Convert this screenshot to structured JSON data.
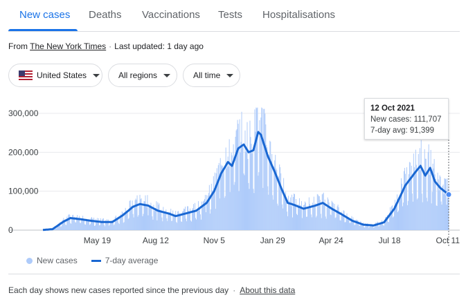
{
  "tabs": [
    {
      "label": "New cases",
      "active": true
    },
    {
      "label": "Deaths",
      "active": false
    },
    {
      "label": "Vaccinations",
      "active": false
    },
    {
      "label": "Tests",
      "active": false
    },
    {
      "label": "Hospitalisations",
      "active": false
    }
  ],
  "source": {
    "prefix": "From",
    "name": "The New York Times",
    "separator": "·",
    "updated": "Last updated: 1 day ago"
  },
  "filters": {
    "country": "United States",
    "region": "All regions",
    "time": "All time"
  },
  "tooltip": {
    "date": "12 Oct 2021",
    "cases": "New cases: 111,707",
    "avg": "7-day avg: 91,399"
  },
  "legend": {
    "bars": "New cases",
    "line": "7-day average"
  },
  "footer": {
    "text": "Each day shows new cases reported since the previous day",
    "separator": "·",
    "link": "About this data"
  },
  "colors": {
    "accent": "#1a73e8",
    "bar": "#aecbfa",
    "line": "#1967d2"
  },
  "chart_data": {
    "type": "bar",
    "series_names": [
      "New cases",
      "7-day average"
    ],
    "ylim": [
      0,
      300000
    ],
    "yticks": [
      0,
      100000,
      200000,
      300000
    ],
    "ytick_labels": [
      "0",
      "100,000",
      "200,000",
      "300,000"
    ],
    "xticks": [
      "May 19",
      "Aug 12",
      "Nov 5",
      "Jan 29",
      "Apr 24",
      "Jul 18",
      "Oct 11"
    ],
    "avg_points": [
      [
        "2020-03-01",
        500
      ],
      [
        "2020-03-15",
        2500
      ],
      [
        "2020-03-31",
        22000
      ],
      [
        "2020-04-10",
        31000
      ],
      [
        "2020-04-25",
        28000
      ],
      [
        "2020-05-10",
        24000
      ],
      [
        "2020-05-25",
        21000
      ],
      [
        "2020-06-10",
        21000
      ],
      [
        "2020-06-25",
        38000
      ],
      [
        "2020-07-10",
        60000
      ],
      [
        "2020-07-20",
        67000
      ],
      [
        "2020-08-01",
        63000
      ],
      [
        "2020-08-15",
        50000
      ],
      [
        "2020-09-01",
        42000
      ],
      [
        "2020-09-10",
        36000
      ],
      [
        "2020-09-25",
        43000
      ],
      [
        "2020-10-10",
        50000
      ],
      [
        "2020-10-25",
        70000
      ],
      [
        "2020-11-05",
        100000
      ],
      [
        "2020-11-15",
        145000
      ],
      [
        "2020-11-25",
        175000
      ],
      [
        "2020-12-01",
        165000
      ],
      [
        "2020-12-10",
        210000
      ],
      [
        "2020-12-18",
        220000
      ],
      [
        "2020-12-25",
        200000
      ],
      [
        "2021-01-01",
        205000
      ],
      [
        "2021-01-08",
        252000
      ],
      [
        "2021-01-12",
        245000
      ],
      [
        "2021-01-22",
        190000
      ],
      [
        "2021-02-01",
        150000
      ],
      [
        "2021-02-10",
        110000
      ],
      [
        "2021-02-20",
        70000
      ],
      [
        "2021-03-01",
        65000
      ],
      [
        "2021-03-15",
        55000
      ],
      [
        "2021-04-01",
        63000
      ],
      [
        "2021-04-12",
        70000
      ],
      [
        "2021-04-25",
        55000
      ],
      [
        "2021-05-10",
        40000
      ],
      [
        "2021-05-25",
        24000
      ],
      [
        "2021-06-10",
        14000
      ],
      [
        "2021-06-25",
        12000
      ],
      [
        "2021-07-10",
        20000
      ],
      [
        "2021-07-25",
        55000
      ],
      [
        "2021-08-10",
        115000
      ],
      [
        "2021-08-25",
        150000
      ],
      [
        "2021-09-01",
        165000
      ],
      [
        "2021-09-08",
        140000
      ],
      [
        "2021-09-15",
        160000
      ],
      [
        "2021-09-22",
        125000
      ],
      [
        "2021-09-30",
        108000
      ],
      [
        "2021-10-12",
        91399
      ]
    ],
    "highlight": {
      "date": "2021-10-12",
      "new_cases": 111707,
      "avg": 91399
    },
    "legend_position": "bottom-left",
    "grid": true
  }
}
